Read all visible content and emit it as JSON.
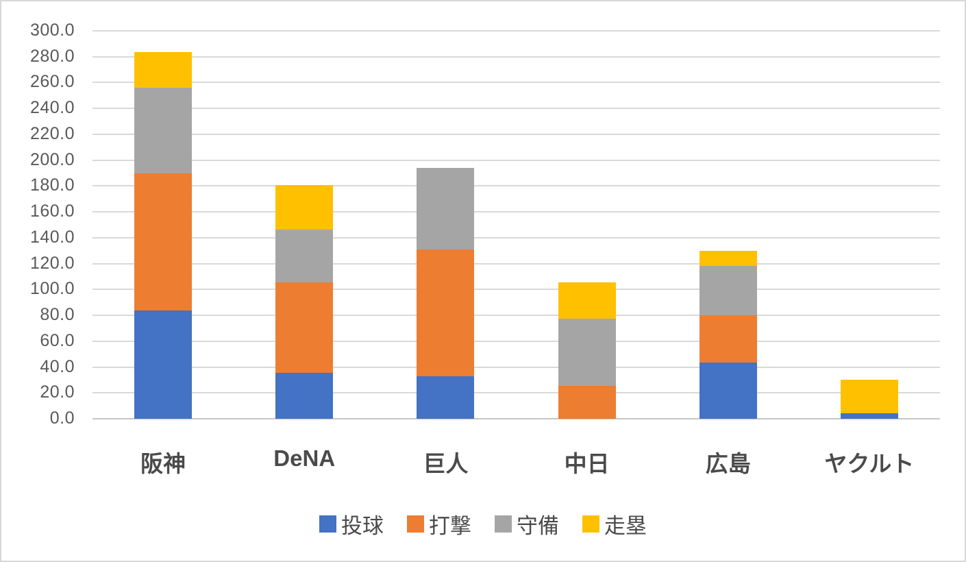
{
  "chart_data": {
    "type": "bar",
    "stacked": true,
    "title": "",
    "xlabel": "",
    "ylabel": "",
    "categories": [
      "阪神",
      "DeNA",
      "巨人",
      "中日",
      "広島",
      "ヤクルト"
    ],
    "series": [
      {
        "name": "投球",
        "color": "#4472C4",
        "values": [
          83.5,
          35.5,
          33.0,
          0.0,
          43.5,
          4.5
        ]
      },
      {
        "name": "打撃",
        "color": "#ED7D31",
        "values": [
          106.5,
          70.0,
          98.0,
          25.5,
          36.5,
          0.0
        ]
      },
      {
        "name": "守備",
        "color": "#A5A5A5",
        "values": [
          66.0,
          41.0,
          63.0,
          52.0,
          38.0,
          0.0
        ]
      },
      {
        "name": "走塁",
        "color": "#FFC000",
        "values": [
          27.5,
          34.0,
          0.0,
          28.0,
          12.0,
          25.5
        ]
      }
    ],
    "totals": [
      283.5,
      180.5,
      194.0,
      105.5,
      130.0,
      30.0
    ],
    "ylim": [
      0,
      300
    ],
    "ytick_step": 20,
    "y_tick_labels": [
      "0.0",
      "20.0",
      "40.0",
      "60.0",
      "80.0",
      "100.0",
      "120.0",
      "140.0",
      "160.0",
      "180.0",
      "200.0",
      "220.0",
      "240.0",
      "260.0",
      "280.0",
      "300.0"
    ],
    "grid": "horizontal",
    "gridline_color": "#D9D9D9",
    "axis_line_color": "#C6C6C6",
    "tick_label_color": "#595959",
    "category_label_color": "#4A4A4A",
    "background_color": "#FFFFFF",
    "legend_position": "bottom",
    "legend_entries": [
      {
        "label": "投球",
        "color": "#4472C4"
      },
      {
        "label": "打撃",
        "color": "#ED7D31"
      },
      {
        "label": "守備",
        "color": "#A5A5A5"
      },
      {
        "label": "走塁",
        "color": "#FFC000"
      }
    ]
  },
  "layout_text": {}
}
